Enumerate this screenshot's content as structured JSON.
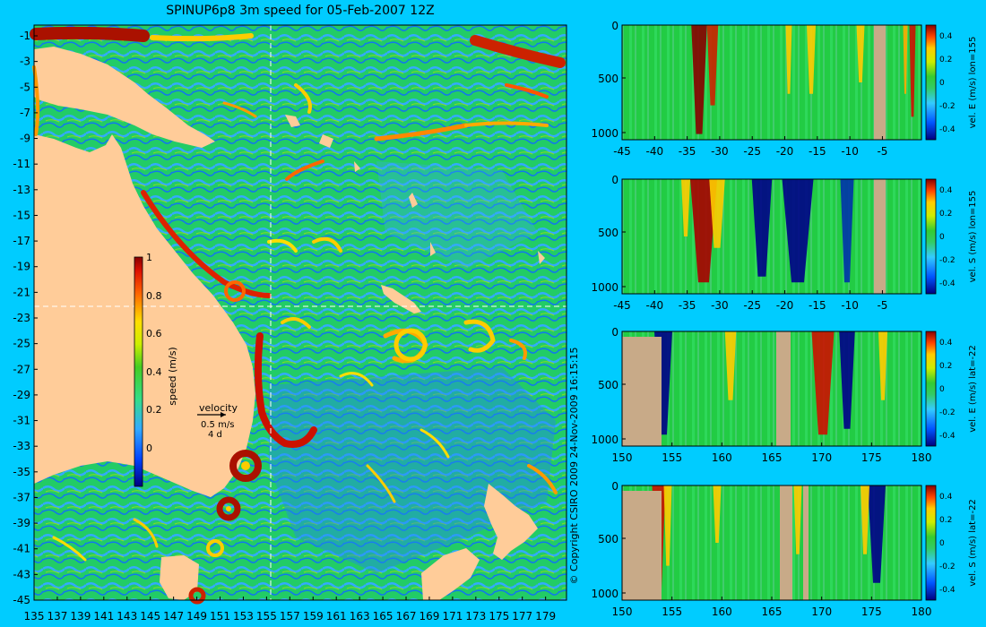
{
  "title": "SPINUP6p8 3m speed for 05-Feb-2007 12Z",
  "copyright": "© Copyright CSIRO 2009   24-Nov-2009 16:15:15",
  "colors": {
    "background": "#00ccff",
    "land": "#ffcc99",
    "section_land": "#c8aa88",
    "cross_line": "#ffffff"
  },
  "map": {
    "lon_ticks": [
      "135",
      "137",
      "139",
      "141",
      "143",
      "145",
      "147",
      "149",
      "151",
      "153",
      "155",
      "157",
      "159",
      "161",
      "163",
      "165",
      "167",
      "169",
      "171",
      "173",
      "175",
      "177",
      "179"
    ],
    "lat_ticks": [
      "-1",
      "-3",
      "-5",
      "-7",
      "-9",
      "-11",
      "-13",
      "-15",
      "-17",
      "-19",
      "-21",
      "-23",
      "-25",
      "-27",
      "-29",
      "-31",
      "-33",
      "-35",
      "-37",
      "-39",
      "-41",
      "-43",
      "-45"
    ],
    "colorbar": {
      "label": "speed (m/s)",
      "ticks": [
        "1",
        "0.8",
        "0.6",
        "0.4",
        "0.2",
        "0"
      ]
    },
    "velocity_legend": {
      "title": "velocity",
      "speed": "0.5 m/s",
      "duration": "4 d"
    }
  },
  "sections": [
    {
      "label": "vel. E (m/s) lon=155",
      "x_ticks": [
        "-45",
        "-40",
        "-35",
        "-30",
        "-25",
        "-20",
        "-15",
        "-10",
        "-5"
      ],
      "y_ticks": [
        "0",
        "500",
        "1000"
      ],
      "cbar_ticks": [
        "0.4",
        "0.2",
        "0",
        "-0.2",
        "-0.4"
      ]
    },
    {
      "label": "vel. S (m/s) lon=155",
      "x_ticks": [
        "-45",
        "-40",
        "-35",
        "-30",
        "-25",
        "-20",
        "-15",
        "-10",
        "-5"
      ],
      "y_ticks": [
        "0",
        "500",
        "1000"
      ],
      "cbar_ticks": [
        "0.4",
        "0.2",
        "0",
        "-0.2",
        "-0.4"
      ]
    },
    {
      "label": "vel. E (m/s) lat=-22",
      "x_ticks": [
        "150",
        "155",
        "160",
        "165",
        "170",
        "175",
        "180"
      ],
      "y_ticks": [
        "0",
        "500",
        "1000"
      ],
      "cbar_ticks": [
        "0.4",
        "0.2",
        "0",
        "-0.2",
        "-0.4"
      ]
    },
    {
      "label": "vel. S (m/s) lat=-22",
      "x_ticks": [
        "150",
        "155",
        "160",
        "165",
        "170",
        "175",
        "180"
      ],
      "y_ticks": [
        "0",
        "500",
        "1000"
      ],
      "cbar_ticks": [
        "0.4",
        "0.2",
        "0",
        "-0.2",
        "-0.4"
      ]
    }
  ]
}
